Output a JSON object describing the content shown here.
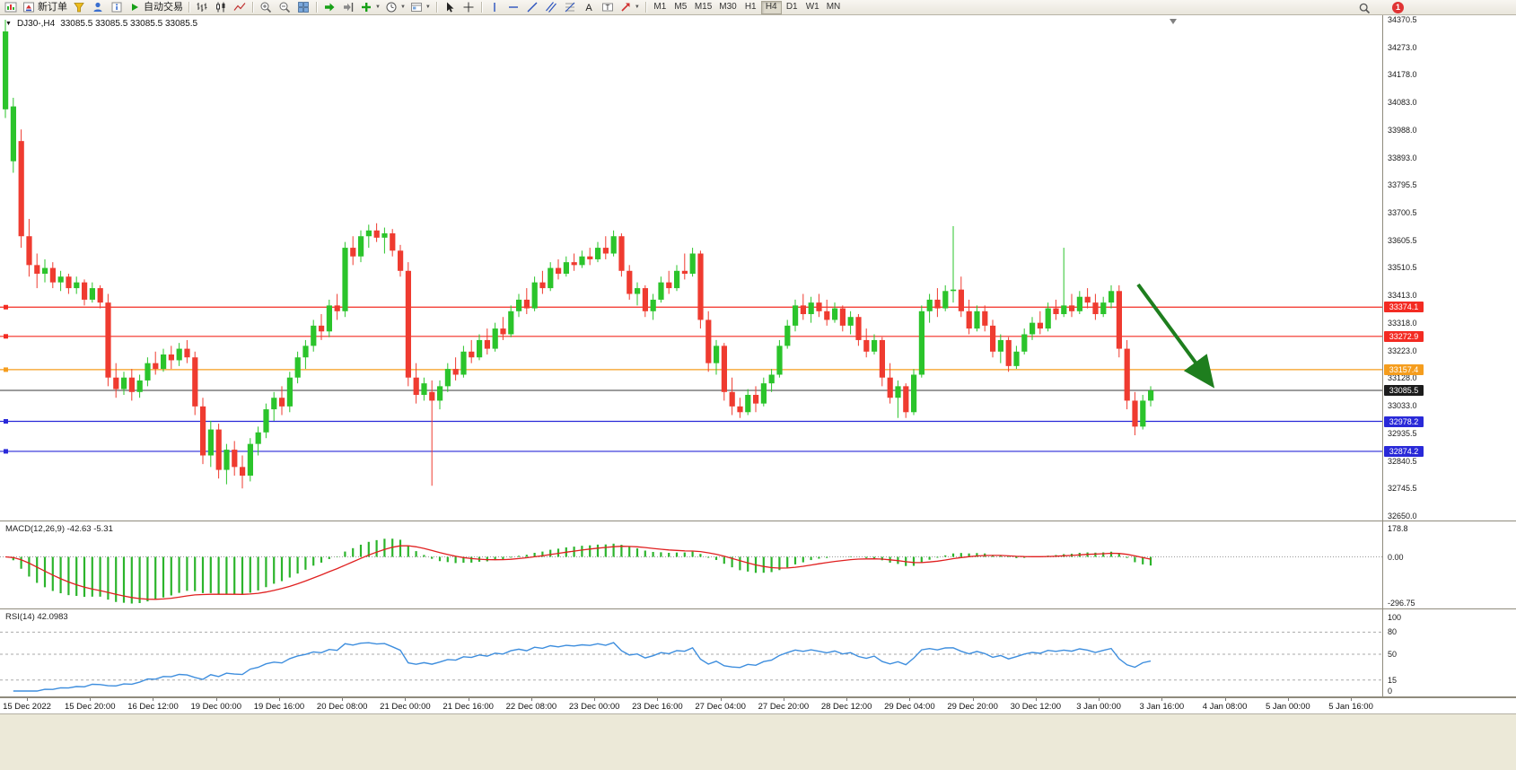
{
  "toolbar": {
    "new_order_label": "新订单",
    "autotrading_label": "自动交易",
    "timeframes": [
      "M1",
      "M5",
      "M15",
      "M30",
      "H1",
      "H4",
      "D1",
      "W1",
      "MN"
    ],
    "active_timeframe": "H4",
    "notification_count": "1",
    "icons": {
      "caret": "▼",
      "text_tool": "A",
      "label_tool": "T",
      "search": "magnifier",
      "new_order": "order-ticket",
      "autotrading": "green-play",
      "zoom_in": "magnifier-plus",
      "zoom_out": "magnifier-minus"
    }
  },
  "chart": {
    "symbol_label": "DJ30-,H4",
    "ohlc_label": "33085.5 33085.5 33085.5 33085.5",
    "menu_caret": "▼",
    "price_axis": [
      "34370.5",
      "34273.0",
      "34178.0",
      "34083.0",
      "33988.0",
      "33893.0",
      "33795.5",
      "33700.5",
      "33605.5",
      "33510.5",
      "33413.0",
      "33318.0",
      "33223.0",
      "33128.0",
      "33033.0",
      "32935.5",
      "32840.5",
      "32745.5",
      "32650.0"
    ],
    "axis_max": 34370.5,
    "axis_min": 32650.0,
    "colors": {
      "up": "#2bc42b",
      "down": "#ef3b30"
    },
    "hlines": [
      {
        "price": 33374.1,
        "label": "33374.1",
        "color": "#f32b22"
      },
      {
        "price": 33272.9,
        "label": "33272.9",
        "color": "#f32b22"
      },
      {
        "price": 33157.4,
        "label": "33157.4",
        "color": "#f59d1e"
      },
      {
        "price": 32978.2,
        "label": "32978.2",
        "color": "#2929d8"
      },
      {
        "price": 32874.2,
        "label": "32874.2",
        "color": "#2929d8"
      }
    ],
    "current_price": {
      "price": 33085.5,
      "label": "33085.5",
      "color": "#3a3a3a",
      "badge_bg": "#1c1c1c"
    },
    "trend_arrow": {
      "color": "#1e7e1e"
    }
  },
  "macd": {
    "label": "MACD(12,26,9) -42.63 -5.31",
    "axis": [
      "178.8",
      "0.00",
      "-296.75"
    ],
    "fast": 12,
    "slow": 26,
    "smoothing": 9,
    "histogram_color": "#2cb42c",
    "signal_color": "#e02020"
  },
  "rsi": {
    "label": "RSI(14) 42.0983",
    "axis": [
      "100",
      "80",
      "50",
      "15",
      "0"
    ],
    "levels": [
      80,
      50,
      15
    ],
    "period": 14,
    "line_color": "#3e8ede"
  },
  "time_axis": [
    "15 Dec 2022",
    "15 Dec 20:00",
    "16 Dec 12:00",
    "19 Dec 00:00",
    "19 Dec 16:00",
    "20 Dec 08:00",
    "21 Dec 00:00",
    "21 Dec 16:00",
    "22 Dec 08:00",
    "23 Dec 00:00",
    "23 Dec 16:00",
    "27 Dec 04:00",
    "27 Dec 20:00",
    "28 Dec 12:00",
    "29 Dec 04:00",
    "29 Dec 20:00",
    "30 Dec 12:00",
    "3 Jan 00:00",
    "3 Jan 16:00",
    "4 Jan 08:00",
    "5 Jan 00:00",
    "5 Jan 16:00"
  ],
  "chart_data": {
    "type": "candlestick",
    "title": "DJ30- H4",
    "symbol": "DJ30-",
    "timeframe": "H4",
    "ohlc_order": [
      "open",
      "high",
      "low",
      "close"
    ],
    "y_range": [
      32650.0,
      34370.5
    ],
    "candles": [
      [
        34060,
        34370.5,
        34030,
        34330
      ],
      [
        33880,
        34100,
        33840,
        34070
      ],
      [
        33950,
        33990,
        33580,
        33620
      ],
      [
        33620,
        33680,
        33480,
        33520
      ],
      [
        33520,
        33560,
        33440,
        33490
      ],
      [
        33490,
        33540,
        33460,
        33510
      ],
      [
        33510,
        33530,
        33440,
        33460
      ],
      [
        33460,
        33500,
        33430,
        33480
      ],
      [
        33480,
        33490,
        33420,
        33440
      ],
      [
        33440,
        33480,
        33420,
        33460
      ],
      [
        33460,
        33470,
        33380,
        33400
      ],
      [
        33400,
        33460,
        33390,
        33440
      ],
      [
        33440,
        33450,
        33370,
        33390
      ],
      [
        33390,
        33420,
        33100,
        33130
      ],
      [
        33130,
        33180,
        33060,
        33090
      ],
      [
        33090,
        33150,
        33070,
        33130
      ],
      [
        33130,
        33160,
        33050,
        33080
      ],
      [
        33080,
        33140,
        33060,
        33120
      ],
      [
        33120,
        33200,
        33100,
        33180
      ],
      [
        33180,
        33220,
        33140,
        33160
      ],
      [
        33160,
        33230,
        33150,
        33210
      ],
      [
        33210,
        33240,
        33160,
        33190
      ],
      [
        33190,
        33250,
        33170,
        33230
      ],
      [
        33230,
        33260,
        33180,
        33200
      ],
      [
        33200,
        33220,
        33000,
        33030
      ],
      [
        33030,
        33060,
        32830,
        32860
      ],
      [
        32860,
        32980,
        32820,
        32950
      ],
      [
        32950,
        32970,
        32780,
        32810
      ],
      [
        32810,
        32900,
        32760,
        32880
      ],
      [
        32880,
        32910,
        32790,
        32820
      ],
      [
        32820,
        32860,
        32745.5,
        32790
      ],
      [
        32790,
        32920,
        32770,
        32900
      ],
      [
        32900,
        32960,
        32860,
        32940
      ],
      [
        32940,
        33040,
        32920,
        33020
      ],
      [
        33020,
        33080,
        32980,
        33060
      ],
      [
        33060,
        33100,
        33000,
        33030
      ],
      [
        33030,
        33150,
        33010,
        33130
      ],
      [
        33130,
        33220,
        33110,
        33200
      ],
      [
        33200,
        33260,
        33160,
        33240
      ],
      [
        33240,
        33330,
        33220,
        33310
      ],
      [
        33310,
        33350,
        33260,
        33290
      ],
      [
        33290,
        33400,
        33270,
        33380
      ],
      [
        33380,
        33420,
        33330,
        33360
      ],
      [
        33360,
        33600,
        33340,
        33580
      ],
      [
        33580,
        33620,
        33520,
        33550
      ],
      [
        33550,
        33640,
        33530,
        33620
      ],
      [
        33620,
        33660,
        33580,
        33640
      ],
      [
        33640,
        33665,
        33600,
        33615
      ],
      [
        33615,
        33650,
        33560,
        33630
      ],
      [
        33630,
        33645,
        33550,
        33570
      ],
      [
        33570,
        33590,
        33480,
        33500
      ],
      [
        33500,
        33530,
        33100,
        33130
      ],
      [
        33130,
        33180,
        33040,
        33070
      ],
      [
        33070,
        33130,
        33050,
        33110
      ],
      [
        33080,
        33120,
        32755,
        33050
      ],
      [
        33050,
        33120,
        33020,
        33100
      ],
      [
        33100,
        33180,
        33080,
        33160
      ],
      [
        33160,
        33200,
        33120,
        33140
      ],
      [
        33140,
        33240,
        33130,
        33220
      ],
      [
        33220,
        33260,
        33180,
        33200
      ],
      [
        33200,
        33280,
        33190,
        33260
      ],
      [
        33260,
        33300,
        33210,
        33230
      ],
      [
        33230,
        33320,
        33220,
        33300
      ],
      [
        33300,
        33340,
        33260,
        33280
      ],
      [
        33280,
        33380,
        33270,
        33360
      ],
      [
        33360,
        33420,
        33340,
        33400
      ],
      [
        33400,
        33440,
        33350,
        33370
      ],
      [
        33370,
        33480,
        33360,
        33460
      ],
      [
        33460,
        33500,
        33420,
        33440
      ],
      [
        33440,
        33530,
        33430,
        33510
      ],
      [
        33510,
        33540,
        33470,
        33490
      ],
      [
        33490,
        33550,
        33480,
        33530
      ],
      [
        33530,
        33560,
        33500,
        33520
      ],
      [
        33520,
        33570,
        33510,
        33550
      ],
      [
        33550,
        33580,
        33520,
        33540
      ],
      [
        33540,
        33600,
        33530,
        33580
      ],
      [
        33580,
        33620,
        33540,
        33560
      ],
      [
        33560,
        33640,
        33550,
        33620
      ],
      [
        33620,
        33630,
        33480,
        33500
      ],
      [
        33500,
        33520,
        33400,
        33420
      ],
      [
        33420,
        33460,
        33380,
        33440
      ],
      [
        33440,
        33450,
        33340,
        33360
      ],
      [
        33360,
        33420,
        33330,
        33400
      ],
      [
        33400,
        33480,
        33390,
        33460
      ],
      [
        33460,
        33500,
        33420,
        33440
      ],
      [
        33440,
        33520,
        33430,
        33500
      ],
      [
        33500,
        33560,
        33470,
        33490
      ],
      [
        33490,
        33580,
        33480,
        33560
      ],
      [
        33560,
        33570,
        33300,
        33330
      ],
      [
        33330,
        33360,
        33150,
        33180
      ],
      [
        33180,
        33260,
        33140,
        33240
      ],
      [
        33240,
        33250,
        33050,
        33080
      ],
      [
        33080,
        33130,
        33000,
        33030
      ],
      [
        33030,
        33060,
        32990,
        33010
      ],
      [
        33010,
        33090,
        33000,
        33070
      ],
      [
        33070,
        33100,
        33010,
        33040
      ],
      [
        33040,
        33130,
        33030,
        33110
      ],
      [
        33110,
        33160,
        33080,
        33140
      ],
      [
        33140,
        33260,
        33130,
        33240
      ],
      [
        33240,
        33330,
        33230,
        33310
      ],
      [
        33310,
        33400,
        33290,
        33380
      ],
      [
        33380,
        33420,
        33330,
        33350
      ],
      [
        33350,
        33410,
        33320,
        33390
      ],
      [
        33390,
        33420,
        33340,
        33360
      ],
      [
        33360,
        33400,
        33310,
        33330
      ],
      [
        33330,
        33390,
        33320,
        33370
      ],
      [
        33370,
        33380,
        33290,
        33310
      ],
      [
        33310,
        33360,
        33280,
        33340
      ],
      [
        33340,
        33350,
        33240,
        33260
      ],
      [
        33260,
        33300,
        33200,
        33220
      ],
      [
        33220,
        33280,
        33210,
        33260
      ],
      [
        33260,
        33270,
        33100,
        33130
      ],
      [
        33130,
        33180,
        33040,
        33060
      ],
      [
        33060,
        33120,
        32990,
        33100
      ],
      [
        33100,
        33110,
        32990,
        33010
      ],
      [
        33010,
        33160,
        33000,
        33140
      ],
      [
        33140,
        33380,
        33130,
        33360
      ],
      [
        33360,
        33420,
        33320,
        33400
      ],
      [
        33400,
        33440,
        33340,
        33370
      ],
      [
        33370,
        33450,
        33360,
        33430
      ],
      [
        33430,
        33655,
        33390,
        33435
      ],
      [
        33435,
        33480,
        33340,
        33360
      ],
      [
        33360,
        33400,
        33280,
        33300
      ],
      [
        33300,
        33380,
        33290,
        33360
      ],
      [
        33360,
        33380,
        33290,
        33310
      ],
      [
        33310,
        33330,
        33200,
        33220
      ],
      [
        33220,
        33280,
        33180,
        33260
      ],
      [
        33260,
        33270,
        33150,
        33170
      ],
      [
        33170,
        33240,
        33160,
        33220
      ],
      [
        33220,
        33300,
        33210,
        33280
      ],
      [
        33280,
        33340,
        33260,
        33320
      ],
      [
        33320,
        33360,
        33280,
        33300
      ],
      [
        33300,
        33390,
        33290,
        33370
      ],
      [
        33370,
        33400,
        33330,
        33350
      ],
      [
        33350,
        33580,
        33340,
        33380
      ],
      [
        33380,
        33420,
        33340,
        33360
      ],
      [
        33360,
        33430,
        33350,
        33410
      ],
      [
        33410,
        33440,
        33370,
        33390
      ],
      [
        33390,
        33420,
        33330,
        33350
      ],
      [
        33350,
        33410,
        33340,
        33390
      ],
      [
        33390,
        33450,
        33370,
        33430
      ],
      [
        33430,
        33450,
        33200,
        33230
      ],
      [
        33230,
        33260,
        33020,
        33050
      ],
      [
        33050,
        33080,
        32930,
        32960
      ],
      [
        32960,
        33070,
        32950,
        33050
      ],
      [
        33050,
        33100,
        33030,
        33085.5
      ]
    ]
  }
}
